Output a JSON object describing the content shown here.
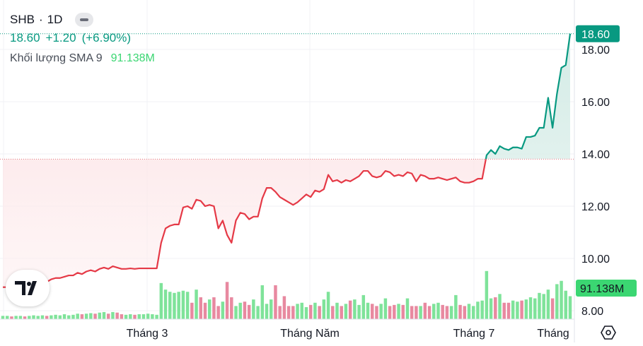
{
  "legend": {
    "symbol": "SHB",
    "separator": "·",
    "interval": "1D",
    "price": "18.60",
    "change": "+1.20",
    "change_pct": "(+6.90%)",
    "volume_label": "Khối lượng SMA 9",
    "volume_value": "91.138M"
  },
  "colors": {
    "up": "#089981",
    "down": "#e53946",
    "volume_up": "#7fe39a",
    "volume_down": "#e889a0",
    "area_up": "#d8efe9",
    "area_down": "#fcdfe1",
    "badge": "#089981",
    "volume_badge": "#3bd672"
  },
  "price_badge": "18.60",
  "volume_badge": "91.138M",
  "icons": [
    "tradingview-logo-icon",
    "collapse-icon",
    "settings-hexagon-icon"
  ],
  "chart_data": {
    "type": "line",
    "x_ticks": [
      "Tháng 3",
      "Tháng Năm",
      "Tháng 7",
      "Tháng"
    ],
    "y_ticks": [
      "8.00",
      "10.00",
      "12.00",
      "14.00",
      "16.00",
      "18.00"
    ],
    "ylim": [
      8,
      18.7
    ],
    "baseline": 13.8,
    "grid": true,
    "price_series": [
      8.9,
      8.9,
      8.88,
      8.9,
      8.95,
      8.9,
      8.95,
      9.05,
      9.1,
      9.15,
      9.1,
      9.2,
      9.25,
      9.25,
      9.3,
      9.35,
      9.35,
      9.45,
      9.4,
      9.5,
      9.55,
      9.5,
      9.6,
      9.65,
      9.6,
      9.7,
      9.65,
      9.6,
      9.6,
      9.62,
      9.6,
      9.62,
      9.62,
      9.62,
      9.62,
      9.62,
      10.6,
      11.15,
      11.25,
      11.3,
      11.3,
      11.95,
      12.0,
      11.9,
      12.25,
      12.2,
      12.0,
      12.05,
      12.0,
      11.15,
      11.45,
      10.9,
      10.6,
      11.45,
      11.75,
      11.7,
      11.5,
      11.6,
      11.6,
      12.3,
      12.7,
      12.7,
      12.55,
      12.35,
      12.25,
      12.15,
      12.05,
      12.15,
      12.3,
      12.45,
      12.35,
      12.6,
      12.55,
      12.65,
      13.2,
      12.95,
      13.0,
      12.9,
      13.0,
      12.95,
      13.05,
      13.15,
      13.35,
      13.35,
      13.15,
      13.1,
      13.15,
      13.35,
      13.3,
      13.15,
      13.2,
      13.15,
      13.3,
      13.25,
      12.95,
      13.2,
      13.15,
      13.05,
      13.05,
      13.1,
      13.05,
      13.0,
      13.05,
      13.1,
      12.95,
      12.9,
      12.9,
      12.95,
      13.05,
      13.05,
      13.95,
      14.15,
      14.0,
      14.3,
      14.2,
      14.15,
      14.25,
      14.25,
      14.2,
      14.65,
      14.65,
      14.7,
      15.0,
      15.0,
      16.15,
      15.0,
      16.3,
      17.3,
      17.4,
      18.6
    ],
    "volume_series": [
      0.3,
      0.3,
      0.25,
      0.3,
      0.3,
      0.25,
      0.3,
      0.35,
      0.3,
      0.35,
      0.3,
      0.35,
      0.4,
      0.35,
      0.45,
      0.35,
      0.4,
      0.5,
      0.45,
      0.5,
      0.55,
      0.5,
      0.6,
      0.65,
      0.5,
      0.65,
      0.6,
      0.45,
      0.4,
      0.45,
      0.4,
      0.45,
      0.45,
      0.5,
      0.45,
      0.4,
      3.3,
      2.7,
      2.5,
      2.4,
      2.5,
      2.6,
      2.5,
      1.5,
      2.7,
      2.0,
      1.5,
      1.8,
      2.0,
      1.2,
      1.6,
      3.4,
      2.0,
      1.2,
      1.5,
      1.6,
      1.3,
      1.8,
      1.2,
      3.1,
      1.4,
      1.8,
      3.1,
      1.2,
      2.1,
      1.2,
      1.2,
      1.4,
      1.5,
      1.1,
      1.3,
      1.5,
      1.2,
      1.8,
      2.5,
      1.2,
      1.5,
      1.2,
      1.4,
      1.7,
      1.8,
      1.3,
      2.2,
      1.5,
      1.4,
      1.2,
      1.4,
      1.9,
      1.2,
      1.3,
      1.4,
      1.3,
      1.9,
      1.2,
      1.2,
      1.2,
      1.5,
      1.2,
      1.4,
      1.5,
      1.3,
      1.2,
      1.2,
      2.2,
      1.3,
      1.2,
      1.4,
      1.2,
      1.6,
      1.7,
      4.4,
      1.9,
      2.0,
      2.3,
      1.5,
      1.5,
      1.7,
      1.6,
      1.7,
      1.8,
      2.0,
      1.9,
      2.4,
      2.3,
      2.7,
      1.9,
      3.2,
      3.5,
      2.6,
      2.1
    ]
  }
}
